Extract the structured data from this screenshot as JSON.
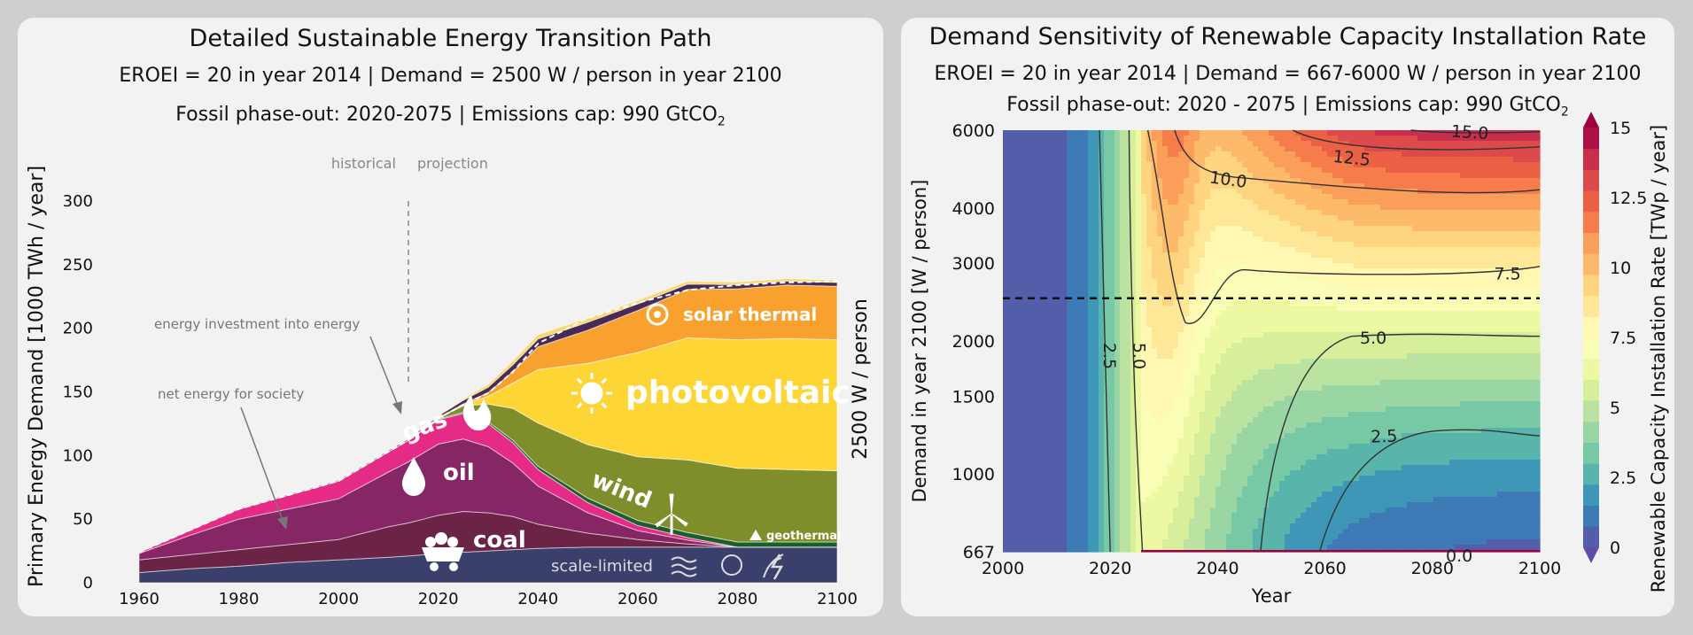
{
  "left": {
    "title": "Detailed Sustainable Energy Transition Path",
    "subtitle1": "EROEI = 20 in year 2014   |   Demand = 2500 W / person in year 2100",
    "subtitle2_main": "Fossil phase-out: 2020-2075   |   Emissions cap: 990 GtCO",
    "subtitle2_sub": "2",
    "annotations": {
      "historical": "historical",
      "projection": "projection",
      "energy_investment": "energy investment into energy",
      "net_energy": "net energy for society",
      "right_axis": "2500 W / person"
    }
  },
  "right": {
    "title": "Demand Sensitivity of Renewable Capacity Installation Rate",
    "subtitle1": "EROEI = 20 in year 2014   |   Demand = 667-6000 W / person in year 2100",
    "subtitle2_main": "Fossil phase-out: 2020 - 2075   |   Emissions cap: 990 GtCO",
    "subtitle2_sub": "2"
  },
  "chart_data": [
    {
      "type": "area",
      "stacked": true,
      "ylabel": "Primary Energy Demand [1000 TWh / year]",
      "xlim": [
        1960,
        2100
      ],
      "ylim": [
        0,
        300
      ],
      "xticks": [
        1960,
        1980,
        2000,
        2020,
        2040,
        2060,
        2080,
        2100
      ],
      "yticks": [
        0,
        50,
        100,
        150,
        200,
        250,
        300
      ],
      "x": [
        1960,
        1970,
        1980,
        1990,
        2000,
        2010,
        2014,
        2020,
        2025,
        2030,
        2035,
        2040,
        2050,
        2060,
        2070,
        2080,
        2090,
        2100
      ],
      "series": [
        {
          "name": "scale-limited",
          "color": "#3b3f6b",
          "values": [
            8,
            11,
            13,
            16,
            18,
            20,
            21,
            23,
            24,
            25,
            26,
            27,
            28,
            28,
            28,
            28,
            28,
            28
          ]
        },
        {
          "name": "coal",
          "color": "#6b2346",
          "values": [
            10,
            11,
            13,
            14,
            16,
            24,
            26,
            30,
            32,
            30,
            26,
            19,
            11,
            6,
            2.5,
            0,
            0,
            0
          ]
        },
        {
          "name": "oil",
          "color": "#862665",
          "values": [
            5,
            15,
            24,
            28,
            32,
            43,
            48,
            56,
            57,
            52,
            42,
            30,
            16,
            7,
            3,
            0,
            0,
            0
          ]
        },
        {
          "name": "gas",
          "color": "#e52b86",
          "values": [
            1,
            4,
            8,
            11,
            14,
            16,
            17,
            19,
            20,
            18,
            16,
            13,
            8,
            4,
            2,
            0,
            0,
            0
          ]
        },
        {
          "name": "geothermal",
          "color": "#1e5c2c",
          "values": [
            0,
            0,
            0,
            0,
            0,
            0,
            0,
            0.5,
            1,
            1.5,
            2,
            2.5,
            3.5,
            4,
            4,
            4,
            4,
            4
          ]
        },
        {
          "name": "wind",
          "color": "#7f8e2a",
          "values": [
            0,
            0,
            0,
            0,
            0,
            0,
            0,
            1,
            5,
            14,
            25,
            34,
            42,
            50,
            57,
            58,
            57,
            56
          ]
        },
        {
          "name": "photovoltaic",
          "color": "#fdd534",
          "values": [
            0,
            0,
            0,
            0,
            0,
            0,
            0,
            0,
            1,
            6,
            20,
            42,
            64,
            82,
            96,
            101,
            103,
            103
          ]
        },
        {
          "name": "solar thermal",
          "color": "#f9a12e",
          "values": [
            0,
            0,
            0,
            0,
            0,
            0,
            0,
            0,
            0.5,
            3,
            9,
            18,
            26,
            33,
            38,
            40,
            42,
            42
          ]
        },
        {
          "name": "energy investment into energy",
          "color": "#4a2a56",
          "values": [
            0,
            0.3,
            0.5,
            0.7,
            0.8,
            1,
            1.1,
            1.6,
            2.8,
            4.2,
            5.5,
            6.1,
            6.3,
            5.2,
            4.2,
            3.4,
            3.1,
            3
          ]
        },
        {
          "name": "",
          "color": "#f7d96a",
          "values": [
            0,
            0,
            0,
            0,
            0,
            0,
            0,
            0.4,
            1.2,
            2.2,
            3,
            3.4,
            3.3,
            2.8,
            2.3,
            2,
            1.9,
            1.9
          ]
        }
      ],
      "net_energy_line": [
        24,
        41,
        58,
        69,
        80,
        103,
        112,
        129,
        140,
        149,
        166,
        188,
        208,
        220,
        230,
        234,
        236,
        237
      ],
      "historical_year": 2014,
      "labels": [
        "gas",
        "oil",
        "coal",
        "scale-limited",
        "wind",
        "geothermal",
        "photovoltaic",
        "solar thermal"
      ]
    },
    {
      "type": "heatmap",
      "subtype": "filled-contour",
      "xlabel": "Year",
      "ylabel": "Demand in year 2100 [W / person]",
      "xlim": [
        2000,
        2100
      ],
      "xticks": [
        2000,
        2020,
        2040,
        2060,
        2080,
        2100
      ],
      "yscale": "log",
      "ylim": [
        667,
        6000
      ],
      "yticks": [
        667,
        1000,
        1500,
        2000,
        3000,
        4000,
        6000
      ],
      "reference_demand": 2500,
      "colorbar": {
        "label": "Renewable Capacity Installation Rate [TWp / year]",
        "min": 0,
        "max": 15,
        "ticks": [
          "0",
          "2.5",
          "5",
          "7.5",
          "10",
          "12.5",
          "15"
        ],
        "colormap": "Spectral_r"
      },
      "contour_labels": [
        "2.5",
        "5.0",
        "2.5",
        "5.0",
        "7.5",
        "10.0",
        "12.5",
        "15.0",
        "0.0"
      ],
      "grid": false
    }
  ]
}
